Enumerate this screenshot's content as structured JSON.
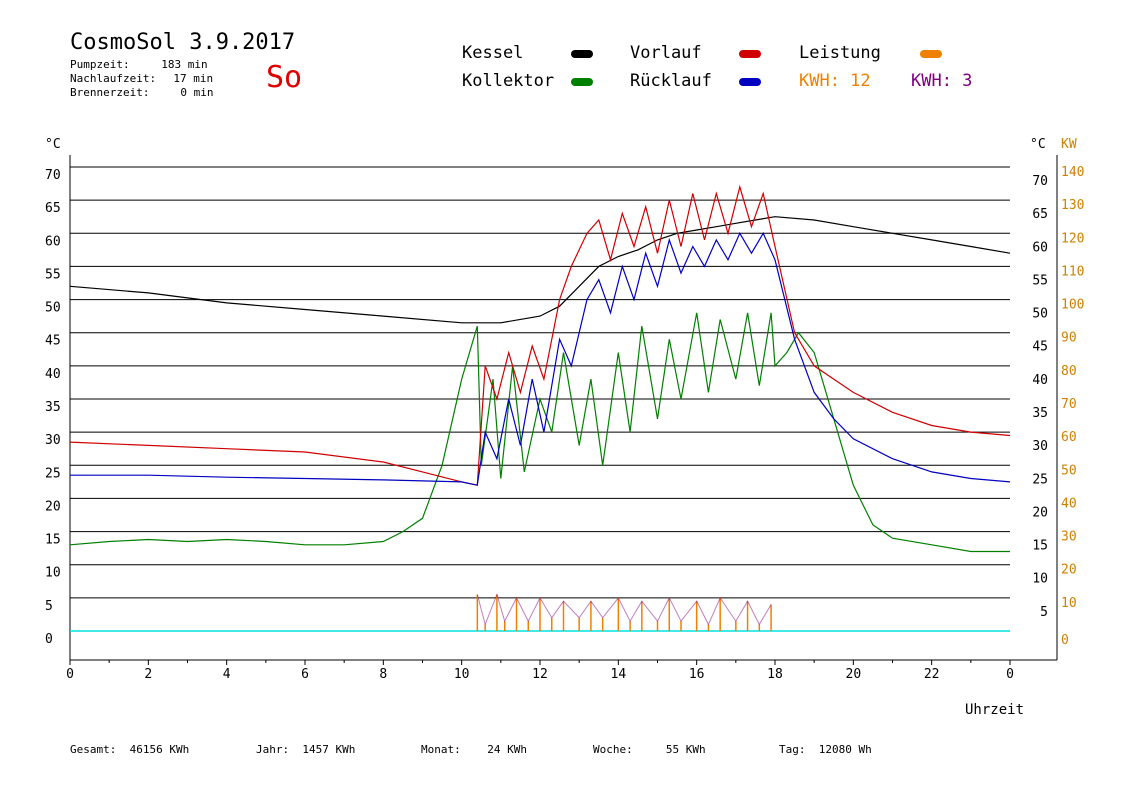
{
  "header": {
    "title": "CosmoSol 3.9.2017",
    "weekday": "So",
    "stats": [
      {
        "label": "Pumpzeit:",
        "value": "183 min"
      },
      {
        "label": "Nachlaufzeit:",
        "value": "17 min"
      },
      {
        "label": "Brennerzeit:",
        "value": "0 min"
      }
    ]
  },
  "legend": {
    "kessel": "Kessel",
    "kollektor": "Kollektor",
    "vorlauf": "Vorlauf",
    "ruecklauf": "Rücklauf",
    "leistung": "Leistung",
    "kwh_a": "KWH: 12",
    "kwh_b": "KWH: 3"
  },
  "colors": {
    "kessel": "#000000",
    "kollektor": "#008000",
    "vorlauf": "#d00000",
    "ruecklauf": "#0000c0",
    "leistung": "#f08000",
    "kwh_b": "#800080",
    "baseline": "#00e0e0",
    "kw_axis": "#d08000"
  },
  "footer": {
    "gesamt_label": "Gesamt:",
    "gesamt_value": "46156 KWh",
    "jahr_label": "Jahr:",
    "jahr_value": "1457 KWh",
    "monat_label": "Monat:",
    "monat_value": "24 KWh",
    "woche_label": "Woche:",
    "woche_value": "55 KWh",
    "tag_label": "Tag:",
    "tag_value": "12080 Wh"
  },
  "chart_data": {
    "type": "line",
    "xlabel": "Uhrzeit",
    "ylabel_left": "°C",
    "ylabel_right_c": "°C",
    "ylabel_right_kw": "KW",
    "xlim": [
      0,
      24
    ],
    "ylim": [
      0,
      70
    ],
    "x_ticks": [
      "0",
      "2",
      "4",
      "6",
      "8",
      "10",
      "12",
      "14",
      "16",
      "18",
      "20",
      "22",
      "0"
    ],
    "y_ticks_left": [
      "0",
      "5",
      "10",
      "15",
      "20",
      "25",
      "30",
      "35",
      "40",
      "45",
      "50",
      "55",
      "60",
      "65",
      "70"
    ],
    "y_ticks_right": [
      "5",
      "10",
      "15",
      "20",
      "25",
      "30",
      "35",
      "40",
      "45",
      "50",
      "55",
      "60",
      "65",
      "70"
    ],
    "kw_ticks": [
      "0",
      "10",
      "20",
      "30",
      "40",
      "50",
      "60",
      "70",
      "80",
      "90",
      "100",
      "110",
      "120",
      "130",
      "140"
    ],
    "grid": true,
    "series": [
      {
        "name": "Kessel",
        "key": "kessel",
        "x": [
          0,
          2,
          4,
          6,
          8,
          10,
          11,
          12,
          12.5,
          13,
          13.5,
          14,
          14.5,
          15,
          15.5,
          16,
          16.5,
          17,
          17.5,
          18,
          19,
          20,
          21,
          22,
          23,
          24
        ],
        "y": [
          52,
          51,
          49.5,
          48.5,
          47.5,
          46.5,
          46.5,
          47.5,
          49,
          52,
          55,
          56.5,
          57.5,
          59,
          60,
          60.5,
          61,
          61.5,
          62,
          62.5,
          62,
          61,
          60,
          59,
          58,
          57
        ]
      },
      {
        "name": "Kollektor",
        "key": "kollektor",
        "x": [
          0,
          1,
          2,
          3,
          4,
          5,
          6,
          7,
          8,
          8.5,
          9,
          9.5,
          10,
          10.4,
          10.5,
          10.8,
          11,
          11.3,
          11.6,
          12,
          12.3,
          12.6,
          13,
          13.3,
          13.6,
          14,
          14.3,
          14.6,
          15,
          15.3,
          15.6,
          16,
          16.3,
          16.6,
          17,
          17.3,
          17.6,
          17.9,
          18,
          18.3,
          18.6,
          19,
          19.5,
          20,
          20.5,
          21,
          22,
          23,
          24
        ],
        "y": [
          13,
          13.5,
          13.8,
          13.5,
          13.8,
          13.5,
          13,
          13,
          13.5,
          15,
          17,
          25,
          38,
          46,
          25,
          38,
          23,
          40,
          24,
          35,
          30,
          42,
          28,
          38,
          25,
          42,
          30,
          46,
          32,
          44,
          35,
          48,
          36,
          47,
          38,
          48,
          37,
          48,
          40,
          42,
          45,
          42,
          32,
          22,
          16,
          14,
          13,
          12,
          12
        ]
      },
      {
        "name": "Vorlauf",
        "key": "vorlauf",
        "x": [
          0,
          2,
          4,
          6,
          8,
          9,
          10,
          10.4,
          10.6,
          10.9,
          11.2,
          11.5,
          11.8,
          12.1,
          12.5,
          12.8,
          13.2,
          13.5,
          13.8,
          14.1,
          14.4,
          14.7,
          15,
          15.3,
          15.6,
          15.9,
          16.2,
          16.5,
          16.8,
          17.1,
          17.4,
          17.7,
          18,
          18.5,
          19,
          20,
          21,
          22,
          23,
          24
        ],
        "y": [
          28.5,
          28,
          27.5,
          27,
          25.5,
          24,
          22.5,
          22,
          40,
          35,
          42,
          36,
          43,
          38,
          50,
          55,
          60,
          62,
          56,
          63,
          58,
          64,
          57,
          65,
          58,
          66,
          59,
          66,
          60,
          67,
          61,
          66,
          58,
          45,
          40,
          36,
          33,
          31,
          30,
          29.5
        ]
      },
      {
        "name": "Rücklauf",
        "key": "ruecklauf",
        "x": [
          0,
          2,
          4,
          6,
          8,
          10,
          10.4,
          10.6,
          10.9,
          11.2,
          11.5,
          11.8,
          12.1,
          12.5,
          12.8,
          13.2,
          13.5,
          13.8,
          14.1,
          14.4,
          14.7,
          15,
          15.3,
          15.6,
          15.9,
          16.2,
          16.5,
          16.8,
          17.1,
          17.4,
          17.7,
          18,
          18.5,
          19,
          19.5,
          20,
          21,
          22,
          23,
          24
        ],
        "y": [
          23.5,
          23.5,
          23.2,
          23,
          22.8,
          22.5,
          22,
          30,
          26,
          35,
          28,
          38,
          30,
          44,
          40,
          50,
          53,
          48,
          55,
          50,
          57,
          52,
          59,
          54,
          58,
          55,
          59,
          56,
          60,
          57,
          60,
          56,
          44,
          36,
          32,
          29,
          26,
          24,
          23,
          22.5
        ]
      },
      {
        "name": "Leistung",
        "key": "leistung",
        "x": [
          10.4,
          10.6,
          10.9,
          11.1,
          11.4,
          11.7,
          12,
          12.3,
          12.6,
          13,
          13.3,
          13.6,
          14,
          14.3,
          14.6,
          15,
          15.3,
          15.6,
          16,
          16.3,
          16.6,
          17,
          17.3,
          17.6,
          17.9
        ],
        "y": [
          5.5,
          1,
          5.5,
          1.5,
          5,
          1.5,
          5,
          2,
          4.5,
          2,
          4.5,
          2,
          5,
          1.5,
          4.5,
          1.5,
          5,
          1.5,
          4.5,
          1,
          5,
          1.5,
          4.5,
          1,
          4
        ]
      }
    ]
  }
}
